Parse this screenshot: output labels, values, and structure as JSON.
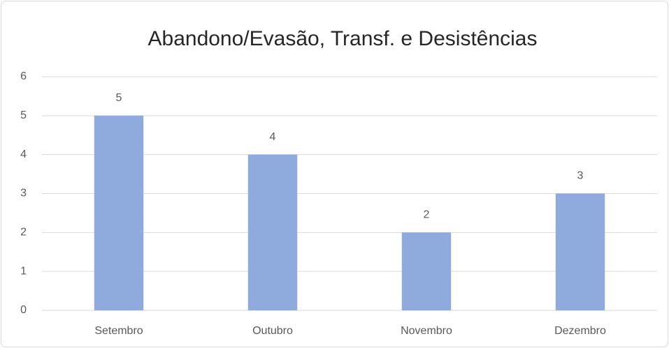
{
  "chart_data": {
    "type": "bar",
    "title": "Abandono/Evasão, Transf. e Desistências",
    "categories": [
      "Setembro",
      "Outubro",
      "Novembro",
      "Dezembro"
    ],
    "values": [
      5,
      4,
      2,
      3
    ],
    "color": "#8faadc",
    "ylim": [
      0,
      6
    ],
    "yticks": [
      0,
      1,
      2,
      3,
      4,
      5,
      6
    ],
    "grid": true,
    "data_labels": true
  }
}
